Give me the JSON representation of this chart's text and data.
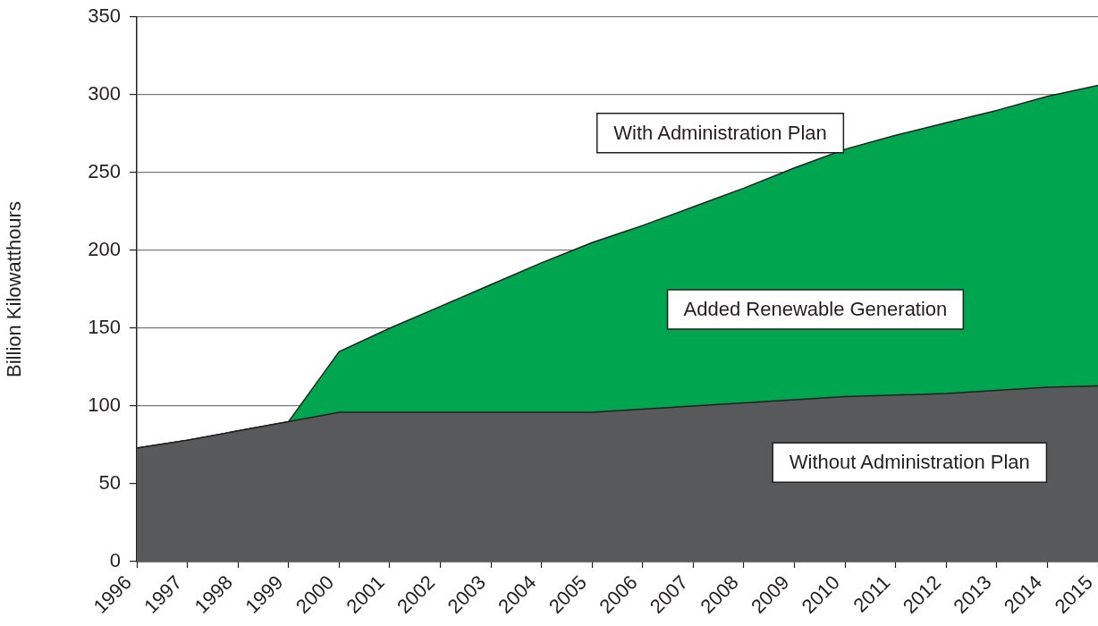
{
  "chart_data": {
    "type": "area",
    "stacked": true,
    "ylabel": "Billion Kilowatthours",
    "categories": [
      "1996",
      "1997",
      "1998",
      "1999",
      "2000",
      "2001",
      "2002",
      "2003",
      "2004",
      "2005",
      "2006",
      "2007",
      "2008",
      "2009",
      "2010",
      "2011",
      "2012",
      "2013",
      "2014",
      "2015"
    ],
    "series": [
      {
        "name": "Without Administration Plan",
        "color": "#58595b",
        "values": [
          73,
          78,
          84,
          90,
          96,
          96,
          96,
          96,
          96,
          96,
          98,
          100,
          102,
          104,
          106,
          107,
          108,
          110,
          112,
          113
        ]
      },
      {
        "name": "Added Renewable Generation",
        "color": "#00a54f",
        "values": [
          0,
          0,
          0,
          0,
          39,
          54,
          68,
          82,
          96,
          109,
          118,
          128,
          138,
          149,
          159,
          167,
          174,
          180,
          187,
          193
        ]
      }
    ],
    "annotations": [
      "With Administration Plan"
    ],
    "ylim": [
      0,
      350
    ],
    "yticks": [
      0,
      50,
      100,
      150,
      200,
      250,
      300,
      350
    ],
    "grid": "y"
  }
}
